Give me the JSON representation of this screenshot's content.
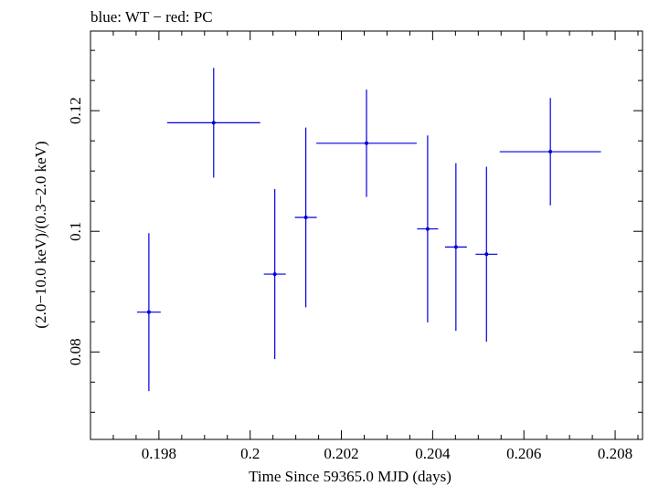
{
  "chart_data": {
    "type": "scatter",
    "title": "blue: WT − red: PC",
    "xlabel": "Time Since 59365.0 MJD (days)",
    "ylabel": "(2.0−10.0 keV)/(0.3−2.0 keV)",
    "xlim": [
      0.1965,
      0.2086
    ],
    "ylim": [
      0.0655,
      0.1332
    ],
    "x_ticks": [
      0.198,
      0.2,
      0.202,
      0.204,
      0.206,
      0.208
    ],
    "x_tick_labels": [
      "0.198",
      "0.2",
      "0.202",
      "0.204",
      "0.206",
      "0.208"
    ],
    "y_ticks": [
      0.08,
      0.1,
      0.12
    ],
    "y_tick_labels": [
      "0.08",
      "0.1",
      "0.12"
    ],
    "grid": false,
    "series": [
      {
        "name": "WT",
        "color": "#0000dd",
        "points": [
          {
            "x": 0.19778,
            "xerr": 0.00026,
            "y": 0.0866,
            "yerr": 0.0131
          },
          {
            "x": 0.1992,
            "xerr": 0.00102,
            "y": 0.118,
            "yerr": 0.0091
          },
          {
            "x": 0.20054,
            "xerr": 0.00024,
            "y": 0.0929,
            "yerr": 0.0141
          },
          {
            "x": 0.20122,
            "xerr": 0.00024,
            "y": 0.1023,
            "yerr": 0.0149
          },
          {
            "x": 0.20255,
            "xerr": 0.0011,
            "y": 0.1146,
            "yerr": 0.0089
          },
          {
            "x": 0.20389,
            "xerr": 0.00023,
            "y": 0.1004,
            "yerr": 0.0155
          },
          {
            "x": 0.20451,
            "xerr": 0.00024,
            "y": 0.0974,
            "yerr": 0.0139
          },
          {
            "x": 0.20518,
            "xerr": 0.00024,
            "y": 0.0962,
            "yerr": 0.0145
          },
          {
            "x": 0.20658,
            "xerr": 0.00111,
            "y": 0.1132,
            "yerr": 0.0089
          }
        ]
      },
      {
        "name": "PC",
        "color": "#dd0000",
        "points": []
      }
    ]
  }
}
